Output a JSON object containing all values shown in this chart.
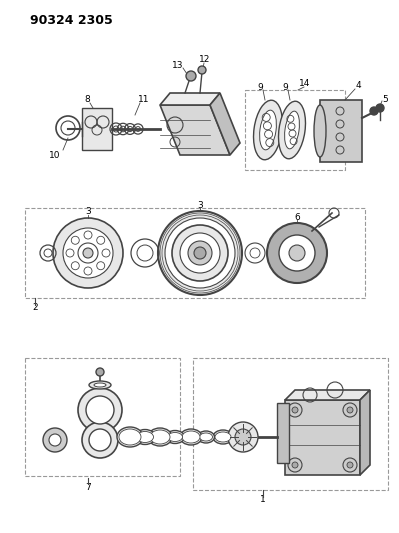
{
  "title": "90324 2305",
  "bg_color": "#ffffff",
  "lc": "#444444",
  "dashed_color": "#999999",
  "fill_light": "#e8e8e8",
  "fill_mid": "#cccccc",
  "fill_dark": "#aaaaaa"
}
